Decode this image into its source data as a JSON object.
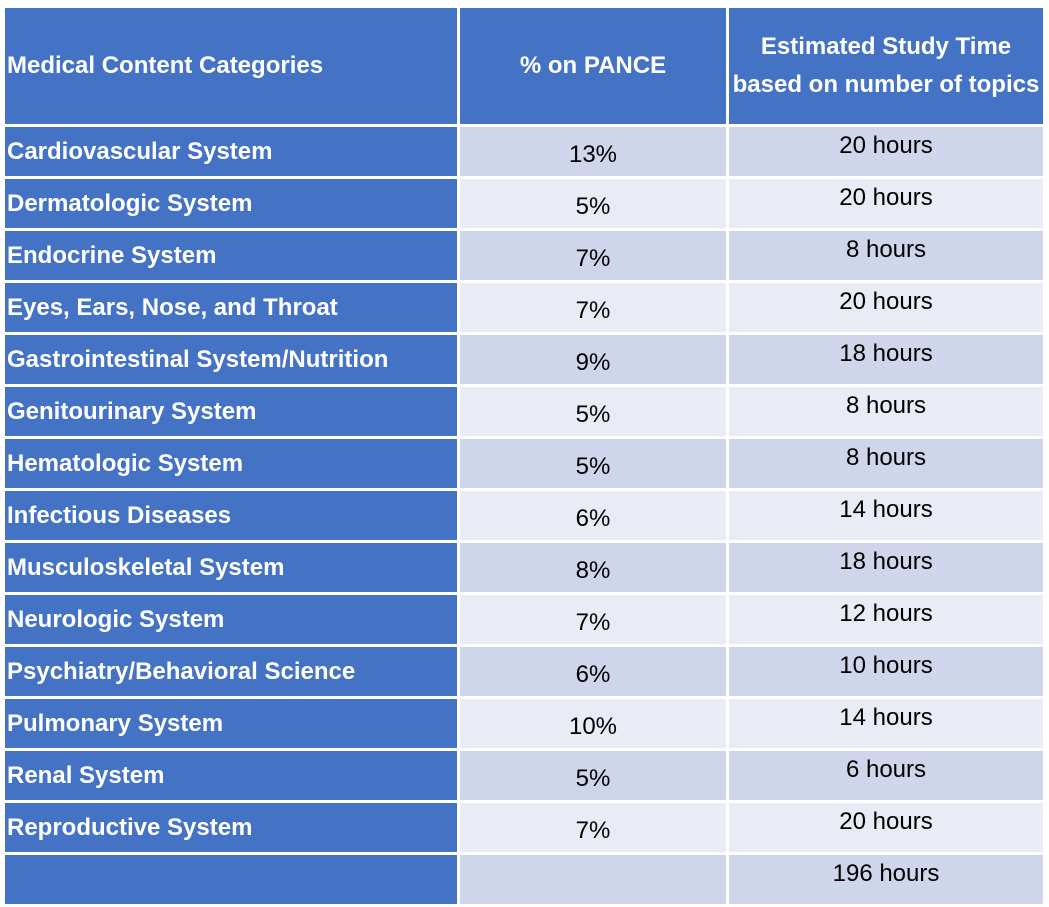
{
  "header": {
    "category": "Medical Content Categories",
    "percent": "% on PANCE",
    "study_time": "Estimated Study Time based on number of topics"
  },
  "rows": [
    {
      "category": "Cardiovascular System",
      "percent": "13%",
      "hours": "20 hours"
    },
    {
      "category": "Dermatologic System",
      "percent": "5%",
      "hours": "20 hours"
    },
    {
      "category": "Endocrine System",
      "percent": "7%",
      "hours": "8 hours"
    },
    {
      "category": "Eyes, Ears, Nose, and Throat",
      "percent": "7%",
      "hours": "20 hours"
    },
    {
      "category": "Gastrointestinal System/Nutrition",
      "percent": "9%",
      "hours": "18 hours"
    },
    {
      "category": "Genitourinary System",
      "percent": "5%",
      "hours": "8 hours"
    },
    {
      "category": "Hematologic System",
      "percent": "5%",
      "hours": "8 hours"
    },
    {
      "category": "Infectious Diseases",
      "percent": "6%",
      "hours": "14 hours"
    },
    {
      "category": "Musculoskeletal System",
      "percent": "8%",
      "hours": "18 hours"
    },
    {
      "category": "Neurologic System",
      "percent": "7%",
      "hours": "12 hours"
    },
    {
      "category": "Psychiatry/Behavioral Science",
      "percent": "6%",
      "hours": "10 hours"
    },
    {
      "category": "Pulmonary System",
      "percent": "10%",
      "hours": "14 hours"
    },
    {
      "category": "Renal System",
      "percent": "5%",
      "hours": "6 hours"
    },
    {
      "category": "Reproductive System",
      "percent": "7%",
      "hours": "20 hours"
    }
  ],
  "total": {
    "category": "",
    "percent": "",
    "hours": "196 hours"
  },
  "colors": {
    "header_bg": "#4472c4",
    "row_odd_bg": "#cfd5ea",
    "row_even_bg": "#e9ebf5",
    "header_text": "#ffffff"
  }
}
